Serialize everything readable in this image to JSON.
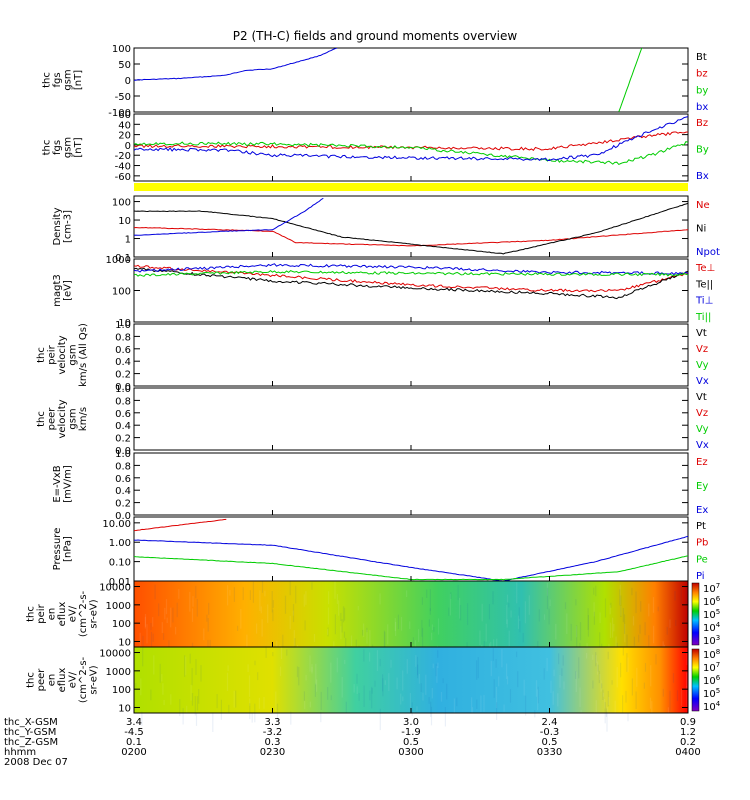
{
  "title": "P2 (TH-C) fields and ground moments overview",
  "colors": {
    "black": "#000000",
    "red": "#dd0000",
    "green": "#00cc00",
    "blue": "#0000dd",
    "yellow": "#ffff00"
  },
  "panels": [
    {
      "ylabel": [
        "thc",
        "fgs",
        "gsm",
        "[nT]"
      ],
      "ticks": [
        "100",
        "50",
        "0",
        "-50",
        "-100"
      ],
      "legend": [
        {
          "text": "Bt",
          "color": "black"
        },
        {
          "text": "bz",
          "color": "red"
        },
        {
          "text": "by",
          "color": "green"
        },
        {
          "text": "bx",
          "color": "blue"
        }
      ]
    },
    {
      "ylabel": [
        "thc",
        "fgs",
        "gsm",
        "[nT]"
      ],
      "ticks": [
        "60",
        "40",
        "20",
        "0",
        "-20",
        "-40",
        "-60"
      ],
      "legend": [
        {
          "text": "Bz",
          "color": "red"
        },
        {
          "text": "By",
          "color": "green"
        },
        {
          "text": "Bx",
          "color": "blue"
        }
      ]
    },
    {
      "ylabel": [
        "Density",
        "[cm-3]"
      ],
      "ticks": [
        "100",
        "10",
        "1",
        "0.1"
      ],
      "legend": [
        {
          "text": "Ne",
          "color": "red"
        },
        {
          "text": "Ni",
          "color": "black"
        },
        {
          "text": "Npot",
          "color": "blue"
        }
      ]
    },
    {
      "ylabel": [
        "magt3",
        "[eV]"
      ],
      "ticks": [
        "1000",
        "100",
        "10"
      ],
      "legend": [
        {
          "text": "Te⊥",
          "color": "red"
        },
        {
          "text": "Te||",
          "color": "black"
        },
        {
          "text": "Ti⊥",
          "color": "blue"
        },
        {
          "text": "Ti||",
          "color": "green"
        }
      ]
    },
    {
      "ylabel": [
        "thc",
        "peir",
        "velocity",
        "gsm",
        "km/s (All Qs)"
      ],
      "ticks": [
        "1.0",
        "0.8",
        "0.6",
        "0.4",
        "0.2",
        "0.0"
      ],
      "legend": [
        {
          "text": "Vt",
          "color": "black"
        },
        {
          "text": "Vz",
          "color": "red"
        },
        {
          "text": "Vy",
          "color": "green"
        },
        {
          "text": "Vx",
          "color": "blue"
        }
      ]
    },
    {
      "ylabel": [
        "thc",
        "peer",
        "velocity",
        "gsm",
        "km/s"
      ],
      "ticks": [
        "1.0",
        "0.8",
        "0.6",
        "0.4",
        "0.2",
        "0.0"
      ],
      "legend": [
        {
          "text": "Vt",
          "color": "black"
        },
        {
          "text": "Vz",
          "color": "red"
        },
        {
          "text": "Vy",
          "color": "green"
        },
        {
          "text": "Vx",
          "color": "blue"
        }
      ]
    },
    {
      "ylabel": [
        "E=-VxB",
        "[mV/m]"
      ],
      "ticks": [
        "1.0",
        "0.8",
        "0.6",
        "0.4",
        "0.2",
        "0.0"
      ],
      "legend": [
        {
          "text": "Ez",
          "color": "red"
        },
        {
          "text": "Ey",
          "color": "green"
        },
        {
          "text": "Ex",
          "color": "blue"
        }
      ]
    },
    {
      "ylabel": [
        "Pressure",
        "[nPa]"
      ],
      "ticks": [
        "10.00",
        "1.00",
        "0.10",
        "0.01"
      ],
      "legend": [
        {
          "text": "Pt",
          "color": "black"
        },
        {
          "text": "Pb",
          "color": "red"
        },
        {
          "text": "Pe",
          "color": "green"
        },
        {
          "text": "Pi",
          "color": "blue"
        }
      ]
    },
    {
      "ylabel": [
        "thc",
        "peir",
        "en",
        "eflux",
        "eV/",
        "(cm^2-s-",
        "sr-eV)"
      ],
      "ticks": [
        "10000",
        "1000",
        "100",
        "10"
      ],
      "colorbar": [
        "10^7",
        "10^6",
        "10^5",
        "10^4",
        "10^3"
      ]
    },
    {
      "ylabel": [
        "thc",
        "peer",
        "en",
        "eflux",
        "eV/",
        "(cm^2-s-",
        "sr-eV)"
      ],
      "ticks": [
        "10000",
        "1000",
        "100",
        "10"
      ],
      "colorbar": [
        "10^8",
        "10^7",
        "10^6",
        "10^5",
        "10^4"
      ]
    }
  ],
  "xaxis": {
    "row_labels": [
      "thc_X-GSM",
      "thc_Y-GSM",
      "thc_Z-GSM",
      "hhmm",
      "2008 Dec 07"
    ],
    "columns": [
      [
        "3.4",
        "-4.5",
        "0.1",
        "0200"
      ],
      [
        "3.3",
        "-3.2",
        "0.3",
        "0230"
      ],
      [
        "3.0",
        "-1.9",
        "0.5",
        "0300"
      ],
      [
        "2.4",
        "-0.3",
        "0.5",
        "0330"
      ],
      [
        "0.9",
        "1.2",
        "0.2",
        "0400"
      ]
    ]
  },
  "chart_data": {
    "type": "line",
    "title": "P2 (TH-C) fields and ground moments overview",
    "x_time_ticks": [
      "0200",
      "0230",
      "0300",
      "0330",
      "0400"
    ],
    "date": "2008 Dec 07",
    "panels": [
      {
        "name": "thc fgs gsm [nT]",
        "ylim": [
          -100,
          100
        ],
        "series": [
          {
            "name": "bx",
            "color": "blue",
            "x": [
              "0200",
              "0210",
              "0220",
              "0224",
              "0230",
              "0240",
              "0244"
            ],
            "y": [
              0,
              5,
              15,
              30,
              35,
              75,
              100
            ]
          },
          {
            "name": "by",
            "color": "green",
            "x": [
              "0345",
              "0350"
            ],
            "y": [
              -100,
              100
            ]
          }
        ]
      },
      {
        "name": "thc fgs gsm [nT] (zoom)",
        "ylim": [
          -70,
          60
        ],
        "series": [
          {
            "name": "Bz",
            "color": "red",
            "x": [
              "0200",
              "0230",
              "0300",
              "0330",
              "0345",
              "0350",
              "0400"
            ],
            "y": [
              -2,
              -3,
              -5,
              -8,
              10,
              16,
              25
            ]
          },
          {
            "name": "By",
            "color": "green",
            "x": [
              "0200",
              "0230",
              "0300",
              "0330",
              "0345",
              "0352",
              "0400"
            ],
            "y": [
              3,
              2,
              -5,
              -30,
              -35,
              -20,
              5
            ]
          },
          {
            "name": "Bx",
            "color": "blue",
            "x": [
              "0200",
              "0220",
              "0230",
              "0300",
              "0330",
              "0340",
              "0350",
              "0400"
            ],
            "y": [
              -8,
              -10,
              -20,
              -25,
              -28,
              -20,
              20,
              55
            ]
          }
        ]
      },
      {
        "name": "Density [cm-3]",
        "scale": "log",
        "ylim": [
          0.1,
          200
        ],
        "series": [
          {
            "name": "Ne",
            "color": "red",
            "x": [
              "0200",
              "0230",
              "0235",
              "0300",
              "0330",
              "0400"
            ],
            "y": [
              4,
              2.5,
              0.6,
              0.4,
              0.8,
              3
            ]
          },
          {
            "name": "Ni",
            "color": "black",
            "x": [
              "0200",
              "0215",
              "0230",
              "0245",
              "0300",
              "0320",
              "0340",
              "0400"
            ],
            "y": [
              30,
              30,
              12,
              1.2,
              0.5,
              0.15,
              2,
              80
            ]
          },
          {
            "name": "Npot",
            "color": "blue",
            "x": [
              "0200",
              "0220",
              "0230",
              "0237",
              "0241"
            ],
            "y": [
              1.5,
              2.5,
              3,
              30,
              150
            ]
          }
        ]
      },
      {
        "name": "magt3 [eV]",
        "scale": "log",
        "ylim": [
          10,
          1000
        ],
        "series": [
          {
            "name": "Te⊥",
            "color": "red",
            "x": [
              "0200",
              "0230",
              "0300",
              "0330",
              "0345",
              "0400"
            ],
            "y": [
              600,
              300,
              150,
              100,
              100,
              350
            ]
          },
          {
            "name": "Te||",
            "color": "black",
            "x": [
              "0200",
              "0230",
              "0300",
              "0330",
              "0345",
              "0400"
            ],
            "y": [
              500,
              200,
              120,
              80,
              60,
              400
            ]
          },
          {
            "name": "Ti⊥",
            "color": "blue",
            "x": [
              "0200",
              "0230",
              "0300",
              "0330",
              "0400"
            ],
            "y": [
              400,
              650,
              550,
              380,
              350
            ]
          },
          {
            "name": "Ti||",
            "color": "green",
            "x": [
              "0200",
              "0230",
              "0300",
              "0330",
              "0400"
            ],
            "y": [
              300,
              400,
              350,
              330,
              320
            ]
          }
        ]
      },
      {
        "name": "thc peir velocity gsm",
        "ylim": [
          0,
          1
        ],
        "series": []
      },
      {
        "name": "thc peer velocity gsm",
        "ylim": [
          0,
          1
        ],
        "series": []
      },
      {
        "name": "E=-VxB [mV/m]",
        "ylim": [
          0,
          1
        ],
        "series": []
      },
      {
        "name": "Pressure [nPa]",
        "scale": "log",
        "ylim": [
          0.01,
          20
        ],
        "series": [
          {
            "name": "Pb",
            "color": "red",
            "x": [
              "0200",
              "0220"
            ],
            "y": [
              4,
              15
            ]
          },
          {
            "name": "Pi",
            "color": "blue",
            "x": [
              "0200",
              "0230",
              "0300",
              "0320",
              "0340",
              "0400"
            ],
            "y": [
              1.3,
              0.7,
              0.05,
              0.01,
              0.1,
              2
            ]
          },
          {
            "name": "Pe",
            "color": "green",
            "x": [
              "0200",
              "0230",
              "0300",
              "0320",
              "0345",
              "0400"
            ],
            "y": [
              0.18,
              0.08,
              0.012,
              0.012,
              0.03,
              0.2
            ]
          }
        ]
      },
      {
        "name": "thc peir en eflux",
        "type": "heatmap",
        "ylim": [
          5,
          20000
        ],
        "colorbar_range": [
          "10^3",
          "10^7"
        ]
      },
      {
        "name": "thc peer en eflux",
        "type": "heatmap",
        "ylim": [
          5,
          20000
        ],
        "colorbar_range": [
          "10^4",
          "10^8"
        ]
      }
    ]
  }
}
